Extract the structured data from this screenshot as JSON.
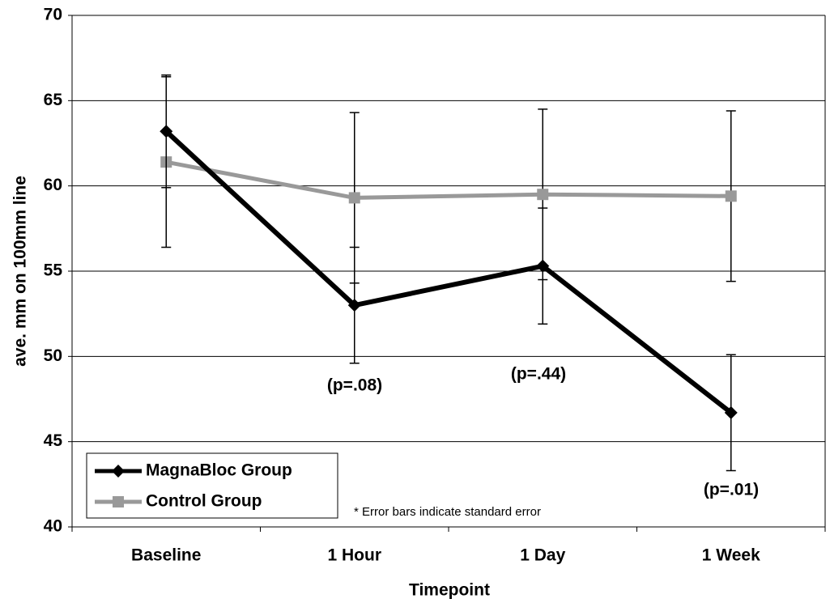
{
  "chart_data": {
    "type": "line",
    "x_label": "Timepoint",
    "y_label": "ave. mm on 100mm line",
    "categories": [
      "Baseline",
      "1 Hour",
      "1 Day",
      "1 Week"
    ],
    "series": [
      {
        "name": "MagnaBloc Group",
        "color": "#000000",
        "marker": "diamond",
        "values": [
          63.2,
          53.0,
          55.3,
          46.7
        ],
        "errors": [
          3.3,
          3.4,
          3.4,
          3.4
        ]
      },
      {
        "name": "Control Group",
        "color": "#999999",
        "marker": "square",
        "values": [
          61.4,
          59.3,
          59.5,
          59.4
        ],
        "errors": [
          5.0,
          5.0,
          5.0,
          5.0
        ]
      }
    ],
    "ylim": [
      40,
      70
    ],
    "yticks": [
      40,
      45,
      50,
      55,
      60,
      65,
      70
    ],
    "grid": true,
    "legend": "lower left",
    "annotations": [
      "(p=.08)",
      "(p=.44)",
      "(p=.01)"
    ],
    "note": "* Error bars indicate standard error"
  }
}
